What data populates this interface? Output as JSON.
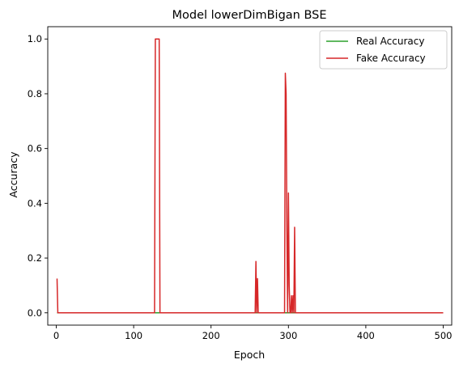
{
  "chart_data": {
    "type": "line",
    "title": "Model lowerDimBigan BSE",
    "xlabel": "Epoch",
    "ylabel": "Accuracy",
    "xlim": [
      -11,
      511
    ],
    "ylim": [
      -0.045,
      1.045
    ],
    "x_ticks": [
      0,
      100,
      200,
      300,
      400,
      500
    ],
    "y_ticks": [
      0.0,
      0.2,
      0.4,
      0.6,
      0.8,
      1.0
    ],
    "x_tick_labels": [
      "0",
      "100",
      "200",
      "300",
      "400",
      "500"
    ],
    "y_tick_labels": [
      "0.0",
      "0.2",
      "0.4",
      "0.6",
      "0.8",
      "1.0"
    ],
    "grid": false,
    "legend_position": "top-right",
    "series": [
      {
        "name": "Real Accuracy",
        "color": "#2ca02c",
        "x": [
          1,
          2,
          3,
          500
        ],
        "y": [
          0.0,
          0.0,
          0.0,
          0.0
        ]
      },
      {
        "name": "Fake Accuracy",
        "color": "#d62728",
        "x": [
          1,
          2,
          3,
          127,
          128,
          129,
          130,
          131,
          132,
          133,
          134,
          257,
          258,
          259,
          260,
          261,
          262,
          295,
          296,
          297,
          298,
          299,
          300,
          301,
          302,
          303,
          304,
          305,
          306,
          307,
          308,
          309,
          310,
          311,
          500
        ],
        "y": [
          0.125,
          0.0,
          0.0,
          0.0,
          1.0,
          1.0,
          1.0,
          1.0,
          1.0,
          1.0,
          0.0,
          0.0,
          0.1875,
          0.0,
          0.125,
          0.0,
          0.0,
          0.0,
          0.875,
          0.8,
          0.3,
          0.0,
          0.4375,
          0.1,
          0.0,
          0.0,
          0.0625,
          0.0,
          0.0625,
          0.0,
          0.3125,
          0.0,
          0.0,
          0.0,
          0.0
        ]
      }
    ]
  }
}
